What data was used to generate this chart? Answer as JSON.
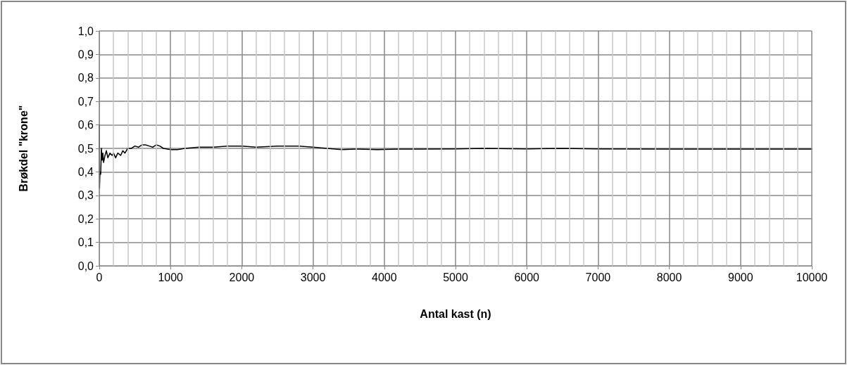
{
  "chart_data": {
    "type": "line",
    "xlabel": "Antal kast (n)",
    "ylabel": "Brøkdel \"krone\"",
    "x": [
      1,
      3,
      10,
      20,
      30,
      40,
      50,
      60,
      80,
      100,
      120,
      150,
      180,
      200,
      230,
      260,
      300,
      330,
      360,
      400,
      450,
      500,
      550,
      600,
      650,
      700,
      750,
      800,
      850,
      900,
      1000,
      1100,
      1200,
      1400,
      1600,
      1800,
      2000,
      2200,
      2500,
      2800,
      3000,
      3200,
      3400,
      3600,
      3900,
      4200,
      4500,
      5000,
      5400,
      6000,
      6500,
      7000,
      8000,
      9000,
      10000
    ],
    "series": [
      {
        "color": "#000000",
        "values": [
          0.6,
          0.33,
          0.4,
          0.39,
          0.5,
          0.45,
          0.48,
          0.44,
          0.47,
          0.49,
          0.46,
          0.48,
          0.47,
          0.48,
          0.46,
          0.48,
          0.47,
          0.49,
          0.48,
          0.5,
          0.5,
          0.51,
          0.505,
          0.515,
          0.515,
          0.51,
          0.505,
          0.515,
          0.51,
          0.5,
          0.495,
          0.495,
          0.5,
          0.505,
          0.505,
          0.51,
          0.51,
          0.505,
          0.51,
          0.51,
          0.505,
          0.5,
          0.495,
          0.497,
          0.495,
          0.497,
          0.497,
          0.498,
          0.5,
          0.498,
          0.5,
          0.498,
          0.497,
          0.497,
          0.497
        ]
      }
    ],
    "xlim": [
      0,
      10000
    ],
    "xticks": [
      0,
      {
        "value": 200,
        "label": null
      },
      {
        "value": 400,
        "label": null
      },
      {
        "value": 600,
        "label": null
      },
      {
        "value": 800,
        "label": null
      },
      1000,
      {
        "value": 1200,
        "label": null
      },
      {
        "value": 1400,
        "label": null
      },
      {
        "value": 1600,
        "label": null
      },
      {
        "value": 1800,
        "label": null
      },
      2000,
      {
        "value": 2200,
        "label": null
      },
      {
        "value": 2400,
        "label": null
      },
      {
        "value": 2600,
        "label": null
      },
      {
        "value": 2800,
        "label": null
      },
      3000,
      {
        "value": 3200,
        "label": null
      },
      {
        "value": 3400,
        "label": null
      },
      {
        "value": 3600,
        "label": null
      },
      {
        "value": 3800,
        "label": null
      },
      4000,
      {
        "value": 4200,
        "label": null
      },
      {
        "value": 4400,
        "label": null
      },
      {
        "value": 4600,
        "label": null
      },
      {
        "value": 4800,
        "label": null
      },
      5000,
      {
        "value": 5200,
        "label": null
      },
      {
        "value": 5400,
        "label": null
      },
      {
        "value": 5600,
        "label": null
      },
      {
        "value": 5800,
        "label": null
      },
      6000,
      {
        "value": 6200,
        "label": null
      },
      {
        "value": 6400,
        "label": null
      },
      {
        "value": 6600,
        "label": null
      },
      {
        "value": 6800,
        "label": null
      },
      7000,
      {
        "value": 7200,
        "label": null
      },
      {
        "value": 7400,
        "label": null
      },
      {
        "value": 7600,
        "label": null
      },
      {
        "value": 7800,
        "label": null
      },
      8000,
      {
        "value": 8200,
        "label": null
      },
      {
        "value": 8400,
        "label": null
      },
      {
        "value": 8600,
        "label": null
      },
      {
        "value": 8800,
        "label": null
      },
      9000,
      {
        "value": 9200,
        "label": null
      },
      {
        "value": 9400,
        "label": null
      },
      {
        "value": 9600,
        "label": null
      },
      {
        "value": 9800,
        "label": null
      },
      10000
    ],
    "ylim": [
      0,
      1
    ],
    "yticks": [
      {
        "value": 0,
        "label": "0,0"
      },
      {
        "value": 0.1,
        "label": "0,1"
      },
      {
        "value": 0.2,
        "label": "0,2"
      },
      {
        "value": 0.3,
        "label": "0,3"
      },
      {
        "value": 0.4,
        "label": "0,4"
      },
      {
        "value": 0.5,
        "label": "0,5"
      },
      {
        "value": 0.6,
        "label": "0,6"
      },
      {
        "value": 0.7,
        "label": "0,7"
      },
      {
        "value": 0.8,
        "label": "0,8"
      },
      {
        "value": 0.9,
        "label": "0,9"
      },
      {
        "value": 1,
        "label": "1,0"
      }
    ],
    "grid": true,
    "marker": "none",
    "line_style": "solid"
  }
}
